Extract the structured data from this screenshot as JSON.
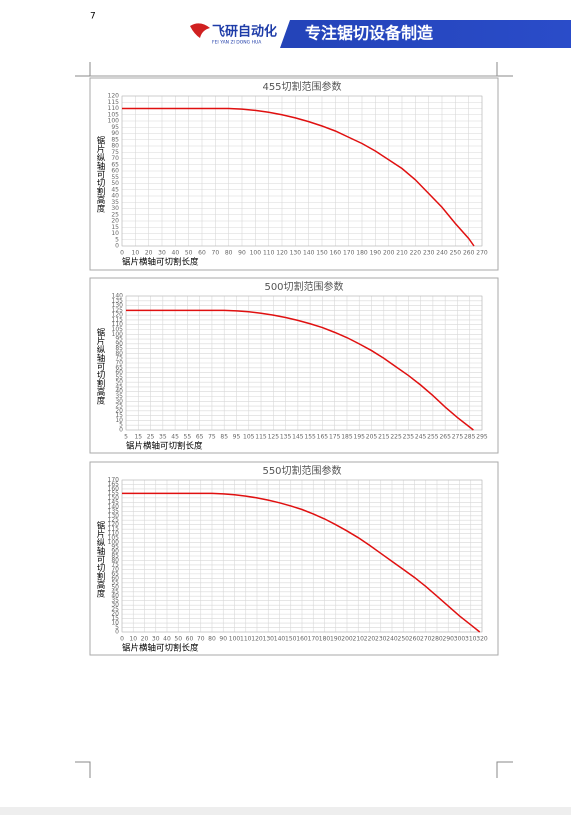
{
  "page_number": "7",
  "header": {
    "logo": "飞研自动化",
    "logo_sub": "FEI YAN ZI DONG HUA",
    "slogan": "专注锯切设备制造"
  },
  "chart_data": [
    {
      "type": "line",
      "title": "455切割范围参数",
      "x_label": "锯片横轴可切割长度",
      "y_label": "锯片纵轴可切割高度",
      "grid": true,
      "x": [
        0,
        10,
        20,
        30,
        40,
        50,
        60,
        70,
        80,
        90,
        100,
        110,
        120,
        130,
        140,
        150,
        160,
        170,
        180,
        190,
        200,
        210,
        220,
        230,
        240,
        250,
        260,
        264
      ],
      "series": [
        {
          "color": "#e01010",
          "values": [
            110,
            110,
            110,
            110,
            110,
            110,
            110,
            110,
            110,
            109.5,
            108.5,
            107,
            105,
            102.5,
            99.5,
            96,
            92,
            87,
            82,
            76,
            69,
            62,
            53,
            42,
            31,
            18,
            6,
            0
          ]
        }
      ],
      "xlim": [
        0,
        270
      ],
      "xticks": [
        0,
        10,
        20,
        30,
        40,
        50,
        60,
        70,
        80,
        90,
        100,
        110,
        120,
        130,
        140,
        150,
        160,
        170,
        180,
        190,
        200,
        210,
        220,
        230,
        240,
        250,
        260,
        270
      ],
      "ylim": [
        0,
        120
      ],
      "yticks": [
        0,
        5,
        10,
        15,
        20,
        25,
        30,
        35,
        40,
        45,
        50,
        55,
        60,
        65,
        70,
        75,
        80,
        85,
        90,
        95,
        100,
        105,
        110,
        115,
        120
      ]
    },
    {
      "type": "line",
      "title": "500切割范围参数",
      "x_label": "锯片横轴可切割长度",
      "y_label": "锯片纵轴可切割高度",
      "grid": true,
      "x": [
        5,
        15,
        25,
        35,
        45,
        55,
        65,
        75,
        85,
        95,
        105,
        115,
        125,
        135,
        145,
        155,
        165,
        175,
        185,
        195,
        205,
        215,
        225,
        235,
        245,
        255,
        265,
        275,
        285,
        288
      ],
      "series": [
        {
          "color": "#e01010",
          "values": [
            125,
            125,
            125,
            125,
            125,
            125,
            125,
            125,
            125,
            124.5,
            123.5,
            122,
            120,
            117.5,
            114.5,
            111,
            107,
            102,
            96.5,
            90,
            83,
            75,
            66,
            57,
            47,
            36,
            24,
            13,
            3,
            0
          ]
        }
      ],
      "xlim": [
        5,
        295
      ],
      "xticks": [
        5,
        15,
        25,
        35,
        45,
        55,
        65,
        75,
        85,
        95,
        105,
        115,
        125,
        135,
        145,
        155,
        165,
        175,
        185,
        195,
        205,
        215,
        225,
        235,
        245,
        255,
        265,
        275,
        285,
        295
      ],
      "ylim": [
        0,
        140
      ],
      "yticks": [
        0,
        5,
        10,
        15,
        20,
        25,
        30,
        35,
        40,
        45,
        50,
        55,
        60,
        65,
        70,
        75,
        80,
        85,
        90,
        95,
        100,
        105,
        110,
        115,
        120,
        125,
        130,
        135,
        140
      ]
    },
    {
      "type": "line",
      "title": "550切割范围参数",
      "x_label": "锯片横轴可切割长度",
      "y_label": "锯片纵轴可切割高度",
      "grid": true,
      "x": [
        0,
        10,
        20,
        30,
        40,
        50,
        60,
        70,
        80,
        90,
        100,
        110,
        120,
        130,
        140,
        150,
        160,
        170,
        180,
        190,
        200,
        210,
        220,
        230,
        240,
        250,
        260,
        270,
        280,
        290,
        300,
        310,
        318
      ],
      "series": [
        {
          "color": "#e01010",
          "values": [
            155,
            155,
            155,
            155,
            155,
            155,
            155,
            155,
            155,
            154.5,
            153.5,
            152,
            150,
            147.5,
            144.5,
            141,
            137,
            132,
            126.5,
            120,
            113,
            105.5,
            97,
            88,
            79,
            70,
            61,
            51,
            40,
            29,
            18,
            8,
            0
          ]
        }
      ],
      "xlim": [
        0,
        320
      ],
      "xticks": [
        0,
        10,
        20,
        30,
        40,
        50,
        60,
        70,
        80,
        90,
        100,
        110,
        120,
        130,
        140,
        150,
        160,
        170,
        180,
        190,
        200,
        210,
        220,
        230,
        240,
        250,
        260,
        270,
        280,
        290,
        300,
        310,
        320
      ],
      "ylim": [
        0,
        170
      ],
      "yticks": [
        0,
        5,
        10,
        15,
        20,
        25,
        30,
        35,
        40,
        45,
        50,
        55,
        60,
        65,
        70,
        75,
        80,
        85,
        90,
        95,
        100,
        105,
        110,
        115,
        120,
        125,
        130,
        135,
        140,
        145,
        150,
        155,
        160,
        165,
        170
      ]
    }
  ]
}
